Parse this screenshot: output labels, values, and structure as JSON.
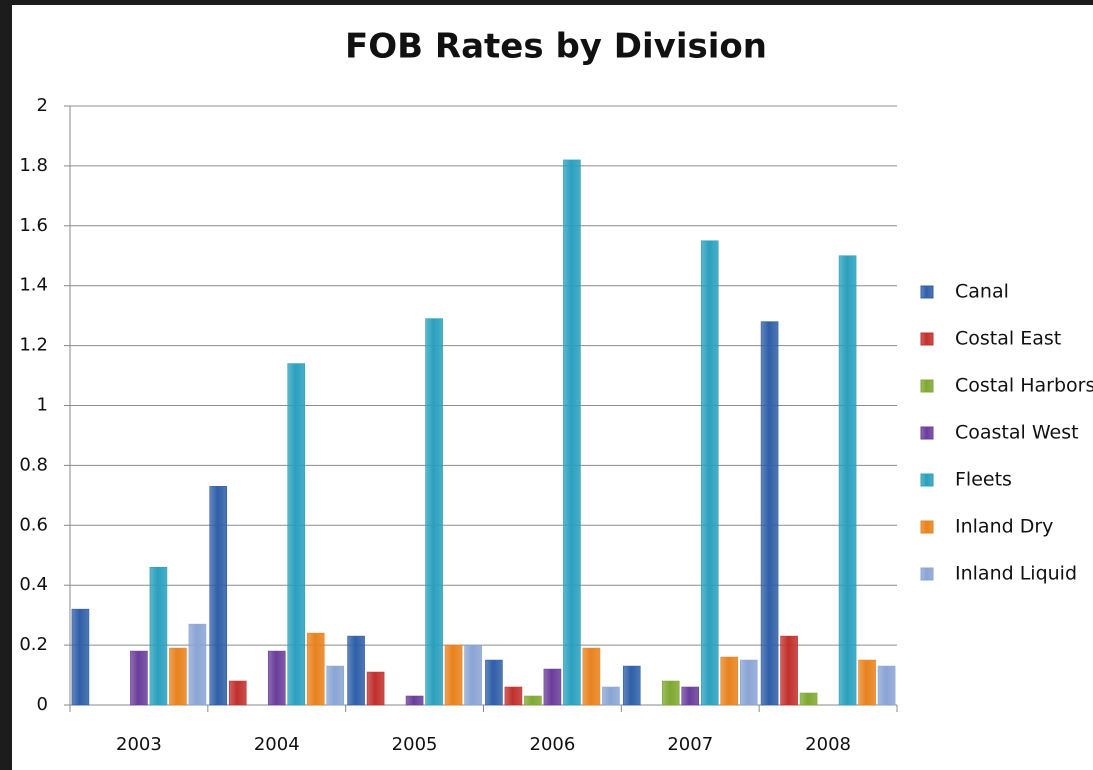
{
  "chart_data": {
    "type": "bar",
    "title": "FOB Rates by Division",
    "categories": [
      "2003",
      "2004",
      "2005",
      "2006",
      "2007",
      "2008"
    ],
    "series": [
      {
        "name": "Canal",
        "color": "#2f5fa8",
        "values": [
          0.32,
          0.73,
          0.23,
          0.15,
          0.13,
          1.28
        ]
      },
      {
        "name": "Costal East",
        "color": "#c0302c",
        "values": [
          0,
          0.08,
          0.11,
          0.06,
          0,
          0.23
        ]
      },
      {
        "name": "Costal Harbors",
        "color": "#7fa832",
        "values": [
          0,
          0,
          0,
          0.03,
          0.08,
          0.04
        ]
      },
      {
        "name": "Coastal West",
        "color": "#6a3d9a",
        "values": [
          0.18,
          0.18,
          0.03,
          0.12,
          0.06,
          0
        ]
      },
      {
        "name": "Fleets",
        "color": "#2aa0be",
        "values": [
          0.46,
          1.14,
          1.29,
          1.82,
          1.55,
          1.5
        ]
      },
      {
        "name": "Inland Dry",
        "color": "#e8821e",
        "values": [
          0.19,
          0.24,
          0.2,
          0.19,
          0.16,
          0.15
        ]
      },
      {
        "name": "Inland Liquid",
        "color": "#8aa4d4",
        "values": [
          0.27,
          0.13,
          0.2,
          0.06,
          0.15,
          0.13
        ]
      }
    ],
    "ylim": [
      0,
      2
    ],
    "yticks": [
      0,
      0.2,
      0.4,
      0.6,
      0.8,
      1,
      1.2,
      1.4,
      1.6,
      1.8,
      2
    ],
    "grid": true,
    "legend": "right"
  }
}
